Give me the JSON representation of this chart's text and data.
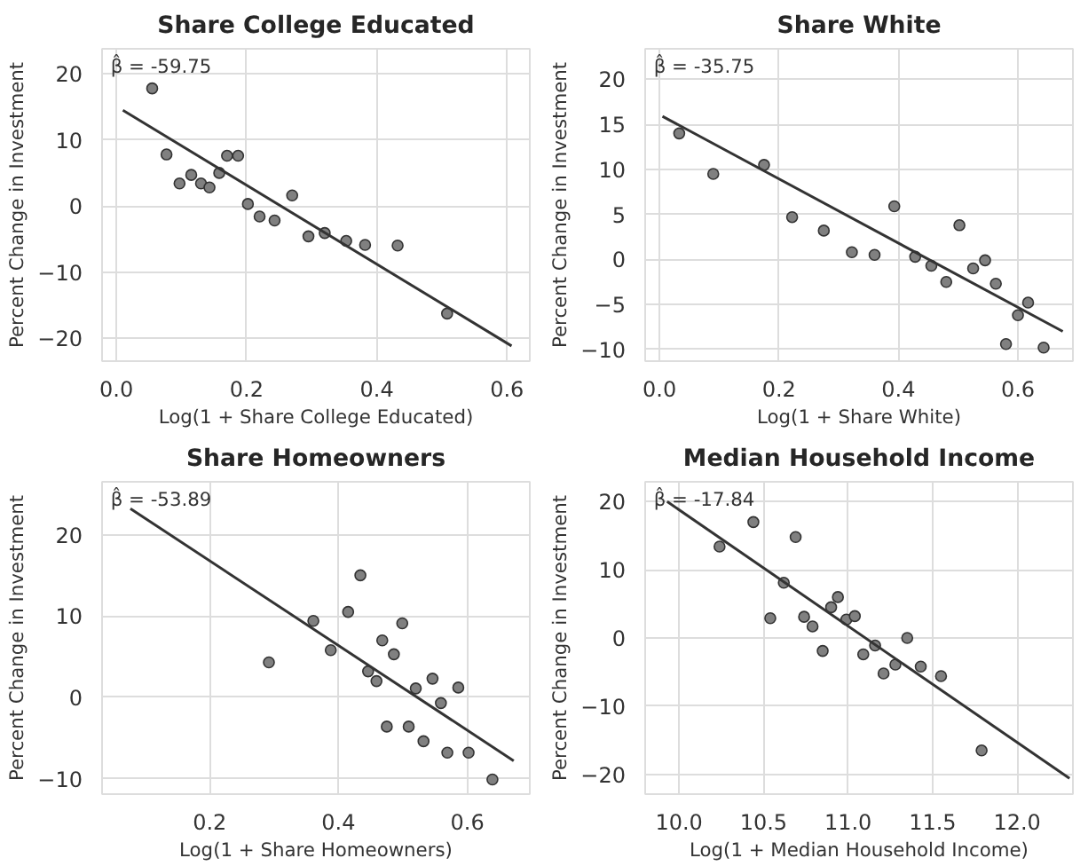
{
  "chart_data": [
    {
      "type": "scatter",
      "title": "Share College Educated",
      "xlabel": "Log(1 + Share College Educated)",
      "ylabel": "Percent Change in Investment",
      "xlim": [
        -0.022,
        0.635
      ],
      "ylim": [
        -23.5,
        23.8
      ],
      "xticks": [
        {
          "value": 0,
          "label": "0.0"
        },
        0.2,
        0.4,
        0.6
      ],
      "yticks": [
        {
          "value": -20,
          "label": "−20"
        },
        {
          "value": -10,
          "label": "−10"
        },
        0,
        10,
        20
      ],
      "grid": true,
      "annotations": [
        "β̂ = -59.75"
      ],
      "series": [
        {
          "color": "#808080",
          "marker": "circle",
          "x": [
            0.055,
            0.077,
            0.097,
            0.115,
            0.13,
            0.143,
            0.158,
            0.17,
            0.187,
            0.202,
            0.22,
            0.243,
            0.27,
            0.295,
            0.32,
            0.353,
            0.382,
            0.432,
            0.508
          ],
          "values": [
            17.8,
            7.8,
            3.4,
            4.7,
            3.4,
            2.8,
            5,
            7.6,
            7.6,
            0.3,
            -1.6,
            -2.2,
            1.6,
            -4.6,
            -4.1,
            -5.3,
            -5.9,
            -6,
            -16.3
          ]
        },
        {
          "type": "line",
          "color": "#333333",
          "x": [
            0.01,
            0.607
          ],
          "values": [
            14.5,
            -21.2
          ]
        }
      ]
    },
    {
      "type": "scatter",
      "title": "Share White",
      "xlabel": "Log(1 + Share White)",
      "ylabel": "Percent Change in Investment",
      "xlim": [
        -0.024,
        0.692
      ],
      "ylim": [
        -11.3,
        23.4
      ],
      "xticks": [
        {
          "value": 0,
          "label": "0.0"
        },
        0.2,
        0.4,
        0.6
      ],
      "yticks": [
        {
          "value": -10,
          "label": "−10"
        },
        {
          "value": -5,
          "label": "−5"
        },
        0,
        5,
        10,
        15,
        20
      ],
      "grid": true,
      "annotations": [
        "β̂ = -35.75"
      ],
      "series": [
        {
          "color": "#808080",
          "marker": "circle",
          "x": [
            0.033,
            0.09,
            0.175,
            0.222,
            0.275,
            0.322,
            0.36,
            0.393,
            0.428,
            0.455,
            0.48,
            0.502,
            0.525,
            0.545,
            0.563,
            0.58,
            0.6,
            0.617,
            0.643
          ],
          "values": [
            14,
            9.5,
            10.5,
            4.7,
            3.2,
            0.8,
            0.5,
            5.9,
            0.3,
            -0.7,
            -2.5,
            3.8,
            -1,
            -0.1,
            -2.7,
            -9.4,
            -6.2,
            -4.8,
            -9.8
          ]
        },
        {
          "type": "line",
          "color": "#333333",
          "x": [
            0.005,
            0.675
          ],
          "values": [
            15.9,
            -8
          ]
        }
      ]
    },
    {
      "type": "scatter",
      "title": "Share Homeowners",
      "xlabel": "Log(1 + Share Homeowners)",
      "ylabel": "Percent Change in Investment",
      "xlim": [
        0.033,
        0.697
      ],
      "ylim": [
        -11.9,
        26.5
      ],
      "xticks": [
        0.2,
        0.4,
        0.6
      ],
      "yticks": [
        {
          "value": -10,
          "label": "−10"
        },
        0,
        10,
        20
      ],
      "grid": true,
      "annotations": [
        "β̂ = -53.89"
      ],
      "series": [
        {
          "color": "#808080",
          "marker": "circle",
          "x": [
            0.292,
            0.361,
            0.388,
            0.415,
            0.434,
            0.446,
            0.459,
            0.468,
            0.475,
            0.486,
            0.499,
            0.509,
            0.52,
            0.532,
            0.546,
            0.559,
            0.569,
            0.586,
            0.602,
            0.639
          ],
          "values": [
            4.3,
            9.4,
            5.8,
            10.5,
            15,
            3.2,
            2,
            7,
            -3.6,
            5.3,
            9.1,
            -3.6,
            1.1,
            -5.4,
            2.3,
            -0.7,
            -6.8,
            1.2,
            -6.8,
            -10.1
          ]
        },
        {
          "type": "line",
          "color": "#333333",
          "x": [
            0.077,
            0.672
          ],
          "values": [
            23.2,
            -7.8
          ]
        }
      ]
    },
    {
      "type": "scatter",
      "title": "Median Household Income",
      "xlabel": "Log(1 + Median Household Income)",
      "ylabel": "Percent Change in Investment",
      "xlim": [
        9.8,
        12.33
      ],
      "ylim": [
        -22.9,
        22.9
      ],
      "xticks": [
        {
          "value": 10,
          "label": "10.0"
        },
        10.5,
        {
          "value": 11,
          "label": "11.0"
        },
        11.5,
        {
          "value": 12,
          "label": "12.0"
        }
      ],
      "yticks": [
        {
          "value": -20,
          "label": "−20"
        },
        {
          "value": -10,
          "label": "−10"
        },
        0,
        10,
        20
      ],
      "grid": true,
      "annotations": [
        "β̂ = -17.84"
      ],
      "series": [
        {
          "color": "#808080",
          "marker": "circle",
          "x": [
            10.24,
            10.44,
            10.54,
            10.62,
            10.69,
            10.74,
            10.79,
            10.85,
            10.9,
            10.94,
            10.99,
            11.04,
            11.09,
            11.16,
            11.21,
            11.28,
            11.35,
            11.43,
            11.55,
            11.79
          ],
          "values": [
            13.4,
            17,
            2.9,
            8.1,
            14.8,
            3.1,
            1.7,
            -1.9,
            4.5,
            6,
            2.7,
            3.2,
            -2.4,
            -1.1,
            -5.2,
            -3.9,
            0,
            -4.2,
            -5.6,
            -16.5
          ]
        },
        {
          "type": "line",
          "color": "#333333",
          "x": [
            9.93,
            12.31
          ],
          "values": [
            20,
            -20.6
          ]
        }
      ]
    }
  ]
}
